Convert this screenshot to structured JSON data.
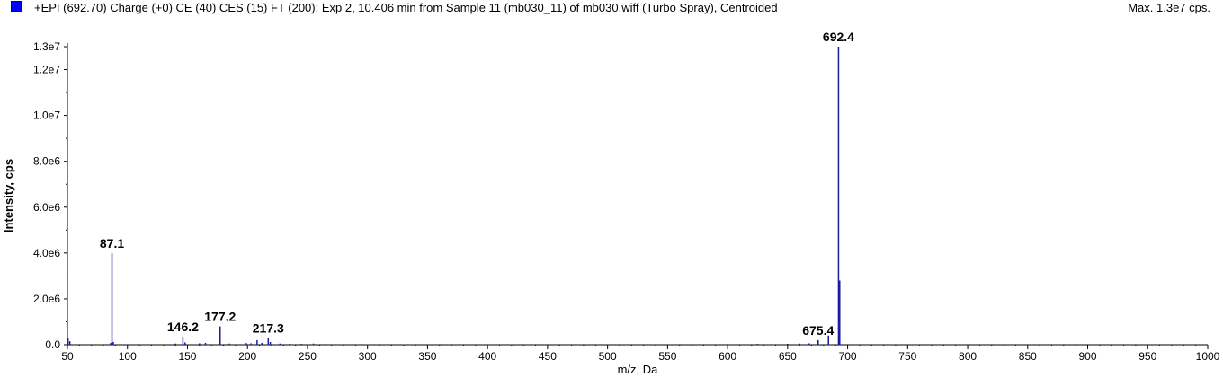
{
  "header": {
    "title": "+EPI (692.70) Charge (+0) CE (40) CES (15) FT (200): Exp 2, 10.406 min from Sample 11 (mb030_11) of mb030.wiff (Turbo Spray), Centroided",
    "max_label": "Max. 1.3e7 cps."
  },
  "colors": {
    "series": "#1a1a9e",
    "swatch": "#0000ff"
  },
  "chart_data": {
    "type": "bar",
    "xlabel": "m/z, Da",
    "ylabel": "Intensity, cps",
    "xlim": [
      50,
      1000
    ],
    "ylim": [
      0,
      13000000
    ],
    "xticks": [
      "50",
      "100",
      "150",
      "200",
      "250",
      "300",
      "350",
      "400",
      "450",
      "500",
      "550",
      "600",
      "650",
      "700",
      "750",
      "800",
      "850",
      "900",
      "950",
      "1000"
    ],
    "yticks": [
      {
        "value": 0,
        "label": "0.0"
      },
      {
        "value": 2000000,
        "label": "2.0e6"
      },
      {
        "value": 4000000,
        "label": "4.0e6"
      },
      {
        "value": 6000000,
        "label": "6.0e6"
      },
      {
        "value": 8000000,
        "label": "8.0e6"
      },
      {
        "value": 10000000,
        "label": "1.0e7"
      },
      {
        "value": 12000000,
        "label": "1.2e7"
      },
      {
        "value": 13000000,
        "label": "1.3e7"
      }
    ],
    "peaks": [
      {
        "mz": 50.5,
        "intensity": 300000
      },
      {
        "mz": 52,
        "intensity": 150000
      },
      {
        "mz": 86,
        "intensity": 80000
      },
      {
        "mz": 87.1,
        "intensity": 4000000,
        "label": "87.1"
      },
      {
        "mz": 88.2,
        "intensity": 120000
      },
      {
        "mz": 140,
        "intensity": 50000
      },
      {
        "mz": 146.2,
        "intensity": 350000,
        "label": "146.2"
      },
      {
        "mz": 148,
        "intensity": 100000
      },
      {
        "mz": 160,
        "intensity": 60000
      },
      {
        "mz": 165,
        "intensity": 80000
      },
      {
        "mz": 177.2,
        "intensity": 800000,
        "label": "177.2"
      },
      {
        "mz": 185,
        "intensity": 50000
      },
      {
        "mz": 199,
        "intensity": 70000
      },
      {
        "mz": 203,
        "intensity": 60000
      },
      {
        "mz": 208,
        "intensity": 200000
      },
      {
        "mz": 212,
        "intensity": 80000
      },
      {
        "mz": 217.3,
        "intensity": 300000,
        "label": "217.3"
      },
      {
        "mz": 219,
        "intensity": 120000
      },
      {
        "mz": 227,
        "intensity": 50000
      },
      {
        "mz": 235,
        "intensity": 40000
      },
      {
        "mz": 245,
        "intensity": 40000
      },
      {
        "mz": 255,
        "intensity": 50000
      },
      {
        "mz": 265,
        "intensity": 30000
      },
      {
        "mz": 300,
        "intensity": 20000
      },
      {
        "mz": 330,
        "intensity": 20000
      },
      {
        "mz": 420,
        "intensity": 15000
      },
      {
        "mz": 600,
        "intensity": 30000
      },
      {
        "mz": 625,
        "intensity": 40000
      },
      {
        "mz": 650,
        "intensity": 40000
      },
      {
        "mz": 660,
        "intensity": 50000
      },
      {
        "mz": 668,
        "intensity": 60000
      },
      {
        "mz": 675.4,
        "intensity": 200000,
        "label": "675.4"
      },
      {
        "mz": 684,
        "intensity": 400000
      },
      {
        "mz": 692.4,
        "intensity": 13000000,
        "label": "692.4"
      },
      {
        "mz": 693.4,
        "intensity": 2800000
      }
    ]
  }
}
